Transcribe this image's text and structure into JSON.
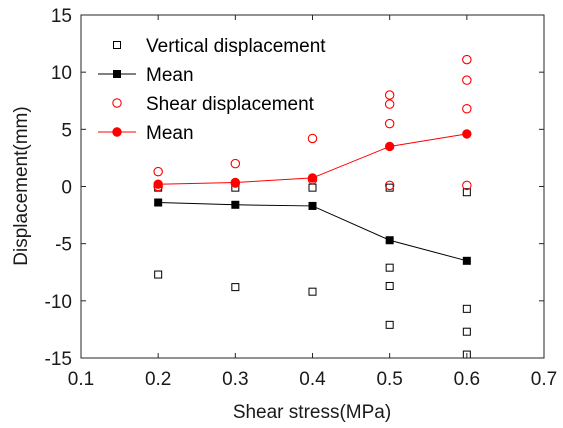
{
  "chart_data": {
    "type": "scatter",
    "xlabel": "Shear stress(MPa)",
    "ylabel": "Displacement(mm)",
    "xlim": [
      0.1,
      0.7
    ],
    "ylim": [
      -15,
      15
    ],
    "xticks": [
      "0.1",
      "0.2",
      "0.3",
      "0.4",
      "0.5",
      "0.6",
      "0.7"
    ],
    "yticks": [
      "-15",
      "-10",
      "-5",
      "0",
      "5",
      "10",
      "15"
    ],
    "grid": false,
    "legend_position": "top-left",
    "series": [
      {
        "name": "Vertical displacement",
        "kind": "scatter",
        "marker": "square-open",
        "color": "#000000",
        "points": [
          [
            0.2,
            -7.7
          ],
          [
            0.2,
            -0.1
          ],
          [
            0.3,
            -8.8
          ],
          [
            0.3,
            -0.1
          ],
          [
            0.4,
            -9.2
          ],
          [
            0.4,
            -0.1
          ],
          [
            0.5,
            -12.1
          ],
          [
            0.5,
            -8.7
          ],
          [
            0.5,
            -7.1
          ],
          [
            0.5,
            -0.1
          ],
          [
            0.6,
            -14.7
          ],
          [
            0.6,
            -12.7
          ],
          [
            0.6,
            -10.7
          ],
          [
            0.6,
            -0.5
          ]
        ]
      },
      {
        "name": "Mean",
        "kind": "line",
        "marker": "square-filled",
        "color": "#000000",
        "points": [
          [
            0.2,
            -1.4
          ],
          [
            0.3,
            -1.6
          ],
          [
            0.4,
            -1.7
          ],
          [
            0.5,
            -4.7
          ],
          [
            0.6,
            -6.5
          ]
        ]
      },
      {
        "name": "Shear displacement",
        "kind": "scatter",
        "marker": "circle-open",
        "color": "#ff0000",
        "points": [
          [
            0.2,
            1.3
          ],
          [
            0.2,
            0.0
          ],
          [
            0.3,
            2.0
          ],
          [
            0.3,
            0.3
          ],
          [
            0.4,
            4.2
          ],
          [
            0.4,
            0.6
          ],
          [
            0.5,
            8.0
          ],
          [
            0.5,
            7.2
          ],
          [
            0.5,
            5.5
          ],
          [
            0.5,
            0.1
          ],
          [
            0.6,
            11.1
          ],
          [
            0.6,
            9.3
          ],
          [
            0.6,
            6.8
          ],
          [
            0.6,
            0.1
          ]
        ]
      },
      {
        "name": "Mean",
        "kind": "line",
        "marker": "circle-filled",
        "color": "#ff0000",
        "points": [
          [
            0.2,
            0.2
          ],
          [
            0.3,
            0.35
          ],
          [
            0.4,
            0.75
          ],
          [
            0.5,
            3.5
          ],
          [
            0.6,
            4.6
          ]
        ]
      }
    ]
  }
}
